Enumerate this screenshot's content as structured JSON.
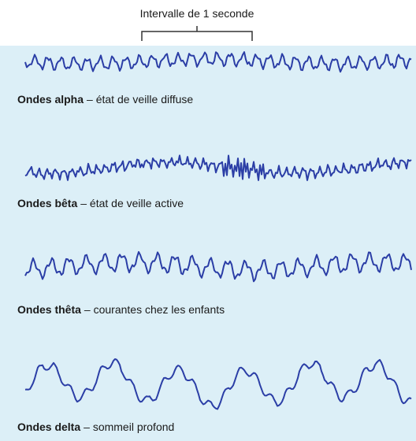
{
  "header": {
    "interval_label": "Intervalle de 1 seconde"
  },
  "waves": [
    {
      "name": "Ondes alpha",
      "description": "– état de veille diffuse"
    },
    {
      "name": "Ondes bêta",
      "description": "– état de veille active"
    },
    {
      "name": "Ondes thêta",
      "description": "– courantes chez les enfants"
    },
    {
      "name": "Ondes delta",
      "description": "– sommeil profond"
    }
  ]
}
